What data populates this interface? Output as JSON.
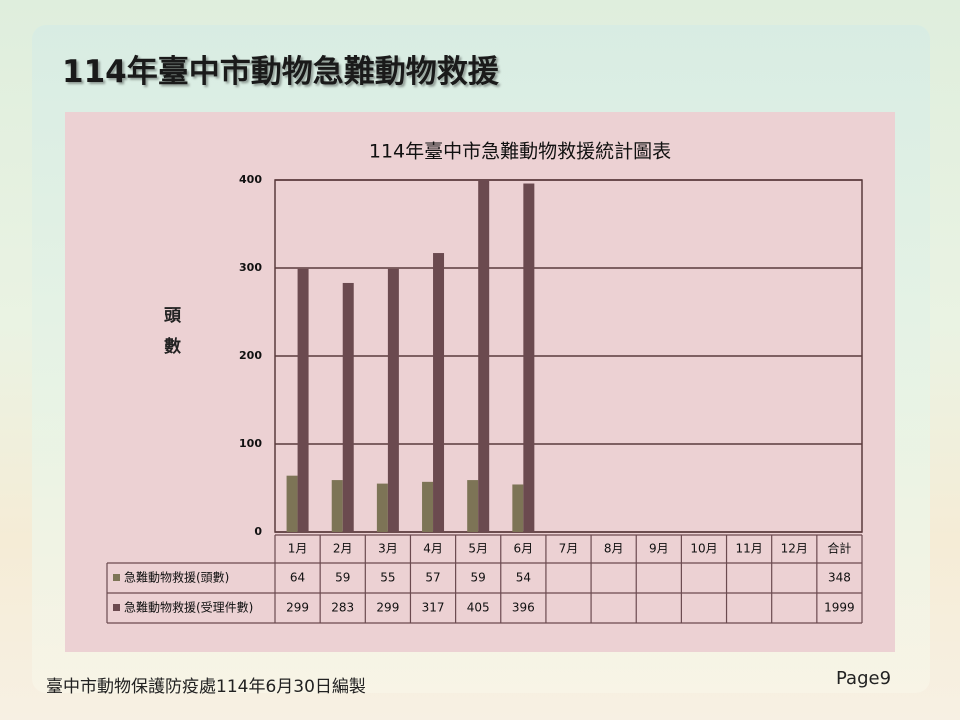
{
  "page_title": "114年臺中市動物急難動物救援",
  "chart_data": {
    "type": "bar",
    "title": "114年臺中市急難動物救援統計圖表",
    "y_label": "頭數",
    "categories": [
      "1月",
      "2月",
      "3月",
      "4月",
      "5月",
      "6月",
      "7月",
      "8月",
      "9月",
      "10月",
      "11月",
      "12月"
    ],
    "total_label": "合計",
    "series": [
      {
        "name": "急難動物救援(頭數)",
        "color": "#7d7456",
        "values": [
          64,
          59,
          55,
          57,
          59,
          54,
          null,
          null,
          null,
          null,
          null,
          null
        ],
        "total": 348
      },
      {
        "name": "急難動物救援(受理件數)",
        "color": "#6b4a4f",
        "values": [
          299,
          283,
          299,
          317,
          405,
          396,
          null,
          null,
          null,
          null,
          null,
          null
        ],
        "total": 1999
      }
    ],
    "ylim": [
      0,
      400
    ],
    "yticks": [
      0,
      100,
      200,
      300,
      400
    ],
    "grid": true
  },
  "footer": "臺中市動物保護防疫處114年6月30日編製",
  "page": "Page9"
}
